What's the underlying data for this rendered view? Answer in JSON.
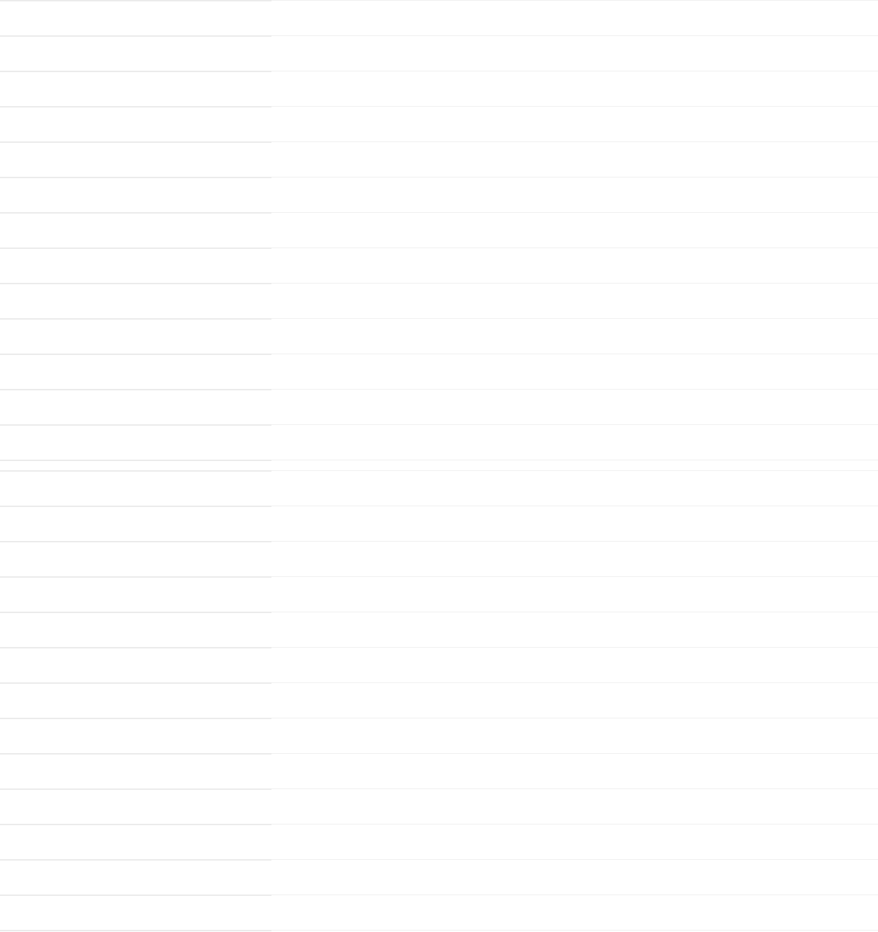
{
  "colors": {
    "left_divider": "#ebebeb",
    "right_divider": "#f0f0f0",
    "background": "#ffffff"
  }
}
